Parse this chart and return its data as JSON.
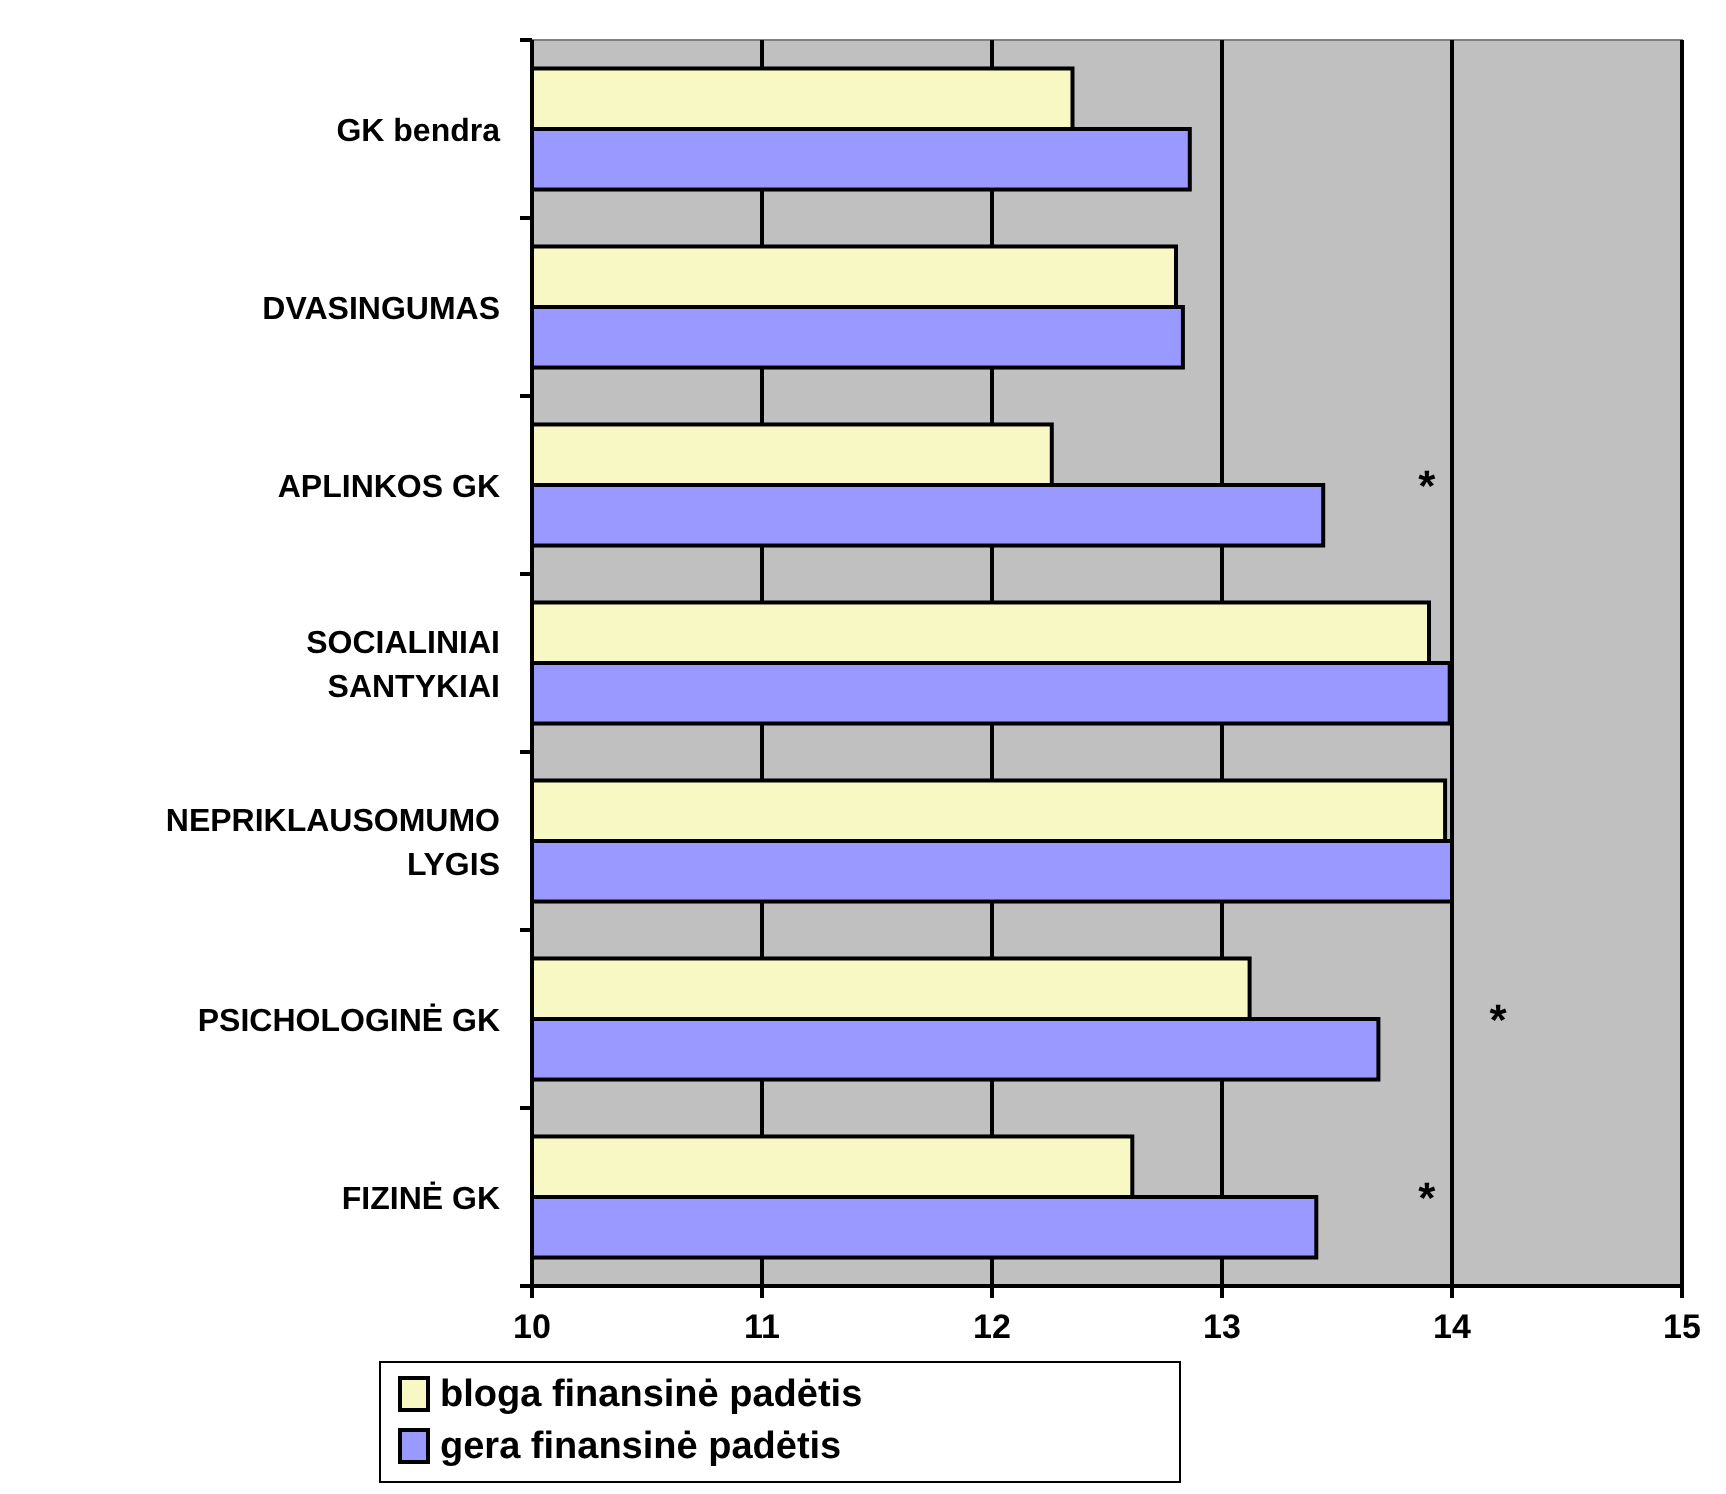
{
  "chart_data": {
    "type": "bar",
    "orientation": "horizontal",
    "categories": [
      "GK bendra",
      "DVASINGUMAS",
      "APLINKOS GK",
      "SOCIALINIAI SANTYKIAI",
      "NEPRIKLAUSOMUMO LYGIS",
      "PSICHOLOGINĖ GK",
      "FIZINĖ GK"
    ],
    "series": [
      {
        "name": "bloga finansinė padėtis",
        "color": "#f8f8c4",
        "values": [
          12.35,
          12.8,
          12.26,
          13.9,
          13.97,
          13.12,
          12.61
        ]
      },
      {
        "name": "gera finansinė padėtis",
        "color": "#9999ff",
        "values": [
          12.86,
          12.83,
          13.44,
          13.99,
          14.0,
          13.68,
          13.41
        ]
      }
    ],
    "xlim": [
      10,
      15
    ],
    "xticks": [
      10,
      11,
      12,
      13,
      14,
      15
    ],
    "grid": "x",
    "legend": "bottom",
    "annotations": [
      "*",
      "*",
      "*"
    ]
  }
}
